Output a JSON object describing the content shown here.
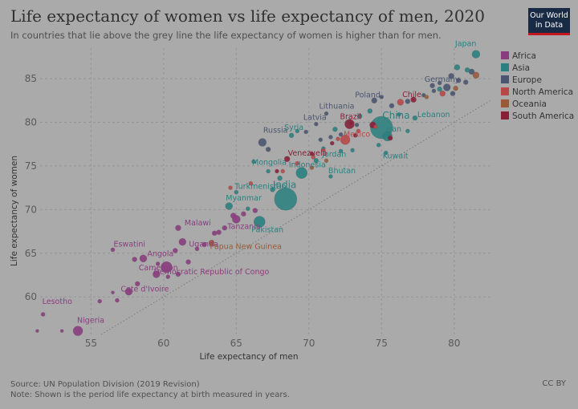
{
  "header": {
    "title": "Life expectancy of women vs life expectancy of men, 2020",
    "subtitle": "In countries that lie above the grey line the life expectancy of women is higher than for men.",
    "logo_line1": "Our World",
    "logo_line2": "in Data"
  },
  "footer": {
    "source": "Source: UN Population Division (2019 Revision)",
    "note": "Note: Shown is the period life expectancy at birth measured in years.",
    "license": "CC BY"
  },
  "chart_data": {
    "type": "scatter",
    "title": "Life expectancy of women vs life expectancy of men, 2020",
    "xlabel": "Life expectancy of men",
    "ylabel": "Life expectancy of women",
    "xlim": [
      51.5,
      82.5
    ],
    "ylim": [
      55.7,
      88.5
    ],
    "xticks": [
      55,
      60,
      65,
      70,
      75,
      80
    ],
    "yticks": [
      60,
      65,
      70,
      75,
      80,
      85
    ],
    "grid": true,
    "reference_line": "y = x",
    "legend_position": "right",
    "colors": {
      "Africa": "#8a3d7e",
      "Asia": "#2a8080",
      "Europe": "#4a5570",
      "North America": "#b84848",
      "Oceania": "#9a5a3a",
      "South America": "#882038"
    },
    "legend": [
      "Africa",
      "Asia",
      "Europe",
      "North America",
      "Oceania",
      "South America"
    ],
    "points": [
      {
        "label": "Japan",
        "x": 81.5,
        "y": 87.8,
        "region": "Asia",
        "size": 5
      },
      {
        "label": "Germany",
        "x": 79.5,
        "y": 84.0,
        "region": "Europe",
        "size": 4.5
      },
      {
        "label": "Chile",
        "x": 77.2,
        "y": 82.6,
        "region": "South America",
        "size": 3.5
      },
      {
        "label": "Lebanon",
        "x": 77.3,
        "y": 80.5,
        "region": "Asia",
        "size": 3
      },
      {
        "label": "Poland",
        "x": 74.5,
        "y": 82.5,
        "region": "Europe",
        "size": 3.5
      },
      {
        "label": "Lithuania",
        "x": 71.2,
        "y": 81.0,
        "region": "Europe",
        "size": 2.5
      },
      {
        "label": "China",
        "x": 75.0,
        "y": 79.4,
        "region": "Asia",
        "size": 14
      },
      {
        "label": "Brazil",
        "x": 72.8,
        "y": 79.8,
        "region": "South America",
        "size": 6
      },
      {
        "label": "Latvia",
        "x": 70.5,
        "y": 79.8,
        "region": "Europe",
        "size": 2.5
      },
      {
        "label": "Iran",
        "x": 75.4,
        "y": 78.4,
        "region": "Asia",
        "size": 6
      },
      {
        "label": "Mexico",
        "x": 72.5,
        "y": 78.0,
        "region": "North America",
        "size": 6
      },
      {
        "label": "Russia",
        "x": 66.8,
        "y": 77.7,
        "region": "Europe",
        "size": 5
      },
      {
        "label": "Syria",
        "x": 68.8,
        "y": 78.5,
        "region": "Asia",
        "size": 3
      },
      {
        "label": "Jordan",
        "x": 73.0,
        "y": 76.8,
        "region": "Asia",
        "size": 2.5
      },
      {
        "label": "Kuwait",
        "x": 75.3,
        "y": 76.5,
        "region": "Asia",
        "size": 2.5
      },
      {
        "label": "Venezuela",
        "x": 68.5,
        "y": 75.8,
        "region": "South America",
        "size": 3.5
      },
      {
        "label": "Mongolia",
        "x": 66.2,
        "y": 75.5,
        "region": "Asia",
        "size": 2.5
      },
      {
        "label": "Indonesia",
        "x": 69.5,
        "y": 74.2,
        "region": "Asia",
        "size": 7
      },
      {
        "label": "Bhutan",
        "x": 71.5,
        "y": 73.8,
        "region": "Asia",
        "size": 2.5
      },
      {
        "label": "India",
        "x": 68.4,
        "y": 71.2,
        "region": "Asia",
        "size": 14
      },
      {
        "label": "Turkmenistan",
        "x": 65.0,
        "y": 72.0,
        "region": "Asia",
        "size": 2.5
      },
      {
        "label": "Myanmar",
        "x": 64.5,
        "y": 70.4,
        "region": "Asia",
        "size": 4.5
      },
      {
        "label": "Pakistan",
        "x": 66.6,
        "y": 68.6,
        "region": "Asia",
        "size": 7
      },
      {
        "label": "Malawi",
        "x": 61.0,
        "y": 67.9,
        "region": "Africa",
        "size": 3.5
      },
      {
        "label": "Tanzania",
        "x": 65.0,
        "y": 68.9,
        "region": "Africa",
        "size": 5
      },
      {
        "label": "Uganda",
        "x": 61.3,
        "y": 66.3,
        "region": "Africa",
        "size": 4.5
      },
      {
        "label": "Papua New Guinea",
        "x": 63.3,
        "y": 66.2,
        "region": "Oceania",
        "size": 3.5
      },
      {
        "label": "Eswatini",
        "x": 56.5,
        "y": 65.4,
        "region": "Africa",
        "size": 2.5
      },
      {
        "label": "Angola",
        "x": 58.6,
        "y": 64.4,
        "region": "Africa",
        "size": 4.5
      },
      {
        "label": "Democratic Republic of Congo",
        "x": 60.2,
        "y": 63.4,
        "region": "Africa",
        "size": 7
      },
      {
        "label": "Cameroon",
        "x": 59.5,
        "y": 62.6,
        "region": "Africa",
        "size": 4.5
      },
      {
        "label": "Cote d'Ivoire",
        "x": 57.6,
        "y": 60.6,
        "region": "Africa",
        "size": 4.5
      },
      {
        "label": "Lesotho",
        "x": 51.7,
        "y": 58.0,
        "region": "Africa",
        "size": 2.5
      },
      {
        "label": "Nigeria",
        "x": 54.1,
        "y": 56.1,
        "region": "Africa",
        "size": 6
      },
      {
        "label": "",
        "x": 51.3,
        "y": 56.1,
        "region": "Africa",
        "size": 2
      },
      {
        "label": "",
        "x": 53.0,
        "y": 56.1,
        "region": "Africa",
        "size": 2
      },
      {
        "label": "",
        "x": 55.6,
        "y": 59.5,
        "region": "Africa",
        "size": 2.5
      },
      {
        "label": "",
        "x": 56.5,
        "y": 60.5,
        "region": "Africa",
        "size": 2
      },
      {
        "label": "",
        "x": 56.8,
        "y": 59.6,
        "region": "Africa",
        "size": 2.5
      },
      {
        "label": "",
        "x": 58.2,
        "y": 61.5,
        "region": "Africa",
        "size": 3
      },
      {
        "label": "",
        "x": 58.0,
        "y": 64.3,
        "region": "Africa",
        "size": 3
      },
      {
        "label": "",
        "x": 59.6,
        "y": 63.8,
        "region": "Africa",
        "size": 2.5
      },
      {
        "label": "",
        "x": 60.3,
        "y": 62.3,
        "region": "Africa",
        "size": 2.5
      },
      {
        "label": "",
        "x": 61.0,
        "y": 62.6,
        "region": "Africa",
        "size": 3
      },
      {
        "label": "",
        "x": 61.7,
        "y": 64.0,
        "region": "Africa",
        "size": 3
      },
      {
        "label": "",
        "x": 62.8,
        "y": 66.0,
        "region": "Africa",
        "size": 3
      },
      {
        "label": "",
        "x": 63.5,
        "y": 67.3,
        "region": "Africa",
        "size": 3
      },
      {
        "label": "",
        "x": 64.2,
        "y": 67.9,
        "region": "Africa",
        "size": 3
      },
      {
        "label": "",
        "x": 63.8,
        "y": 67.4,
        "region": "Africa",
        "size": 3
      },
      {
        "label": "",
        "x": 60.8,
        "y": 65.3,
        "region": "Africa",
        "size": 3
      },
      {
        "label": "",
        "x": 64.8,
        "y": 69.3,
        "region": "Africa",
        "size": 3.5
      },
      {
        "label": "",
        "x": 65.5,
        "y": 69.5,
        "region": "Africa",
        "size": 3
      },
      {
        "label": "",
        "x": 66.3,
        "y": 69.9,
        "region": "Africa",
        "size": 3
      },
      {
        "label": "",
        "x": 62.3,
        "y": 65.5,
        "region": "Africa",
        "size": 2.5
      },
      {
        "label": "",
        "x": 67.5,
        "y": 72.3,
        "region": "Asia",
        "size": 3
      },
      {
        "label": "",
        "x": 68.0,
        "y": 73.6,
        "region": "Asia",
        "size": 3
      },
      {
        "label": "",
        "x": 67.2,
        "y": 74.4,
        "region": "Asia",
        "size": 2.5
      },
      {
        "label": "",
        "x": 70.5,
        "y": 75.6,
        "region": "Asia",
        "size": 3
      },
      {
        "label": "",
        "x": 71.0,
        "y": 77.0,
        "region": "Asia",
        "size": 2.5
      },
      {
        "label": "",
        "x": 71.8,
        "y": 79.2,
        "region": "Asia",
        "size": 3
      },
      {
        "label": "",
        "x": 73.5,
        "y": 80.7,
        "region": "Asia",
        "size": 3
      },
      {
        "label": "",
        "x": 74.2,
        "y": 81.3,
        "region": "Asia",
        "size": 3
      },
      {
        "label": "",
        "x": 76.8,
        "y": 79.0,
        "region": "Asia",
        "size": 2.5
      },
      {
        "label": "",
        "x": 76.2,
        "y": 80.9,
        "region": "Asia",
        "size": 2.5
      },
      {
        "label": "",
        "x": 80.2,
        "y": 86.3,
        "region": "Asia",
        "size": 3.5
      },
      {
        "label": "",
        "x": 80.9,
        "y": 86.0,
        "region": "Asia",
        "size": 3
      },
      {
        "label": "",
        "x": 79.0,
        "y": 83.8,
        "region": "Asia",
        "size": 3
      },
      {
        "label": "",
        "x": 69.2,
        "y": 79.0,
        "region": "Asia",
        "size": 2.5
      },
      {
        "label": "",
        "x": 72.2,
        "y": 76.7,
        "region": "Asia",
        "size": 2.5
      },
      {
        "label": "",
        "x": 74.8,
        "y": 77.4,
        "region": "Asia",
        "size": 2.5
      },
      {
        "label": "",
        "x": 65.8,
        "y": 70.1,
        "region": "Asia",
        "size": 2.5
      },
      {
        "label": "",
        "x": 78.5,
        "y": 84.2,
        "region": "Europe",
        "size": 3
      },
      {
        "label": "",
        "x": 79.8,
        "y": 85.3,
        "region": "Europe",
        "size": 3.5
      },
      {
        "label": "",
        "x": 80.3,
        "y": 84.8,
        "region": "Europe",
        "size": 3
      },
      {
        "label": "",
        "x": 80.8,
        "y": 84.6,
        "region": "Europe",
        "size": 3
      },
      {
        "label": "",
        "x": 81.2,
        "y": 85.8,
        "region": "Europe",
        "size": 3.5
      },
      {
        "label": "",
        "x": 79.9,
        "y": 83.3,
        "region": "Europe",
        "size": 3
      },
      {
        "label": "",
        "x": 79.0,
        "y": 84.5,
        "region": "Europe",
        "size": 2.5
      },
      {
        "label": "",
        "x": 78.6,
        "y": 83.6,
        "region": "Europe",
        "size": 2.5
      },
      {
        "label": "",
        "x": 77.9,
        "y": 83.1,
        "region": "Europe",
        "size": 2.5
      },
      {
        "label": "",
        "x": 76.8,
        "y": 82.4,
        "region": "Europe",
        "size": 3
      },
      {
        "label": "",
        "x": 75.7,
        "y": 81.9,
        "region": "Europe",
        "size": 3
      },
      {
        "label": "",
        "x": 75.0,
        "y": 82.9,
        "region": "Europe",
        "size": 2.5
      },
      {
        "label": "",
        "x": 73.3,
        "y": 79.7,
        "region": "Europe",
        "size": 2.5
      },
      {
        "label": "",
        "x": 72.2,
        "y": 78.6,
        "region": "Europe",
        "size": 2.5
      },
      {
        "label": "",
        "x": 71.5,
        "y": 78.3,
        "region": "Europe",
        "size": 2.5
      },
      {
        "label": "",
        "x": 70.8,
        "y": 78.0,
        "region": "Europe",
        "size": 2.5
      },
      {
        "label": "",
        "x": 69.8,
        "y": 78.9,
        "region": "Europe",
        "size": 2.5
      },
      {
        "label": "",
        "x": 67.2,
        "y": 76.9,
        "region": "Europe",
        "size": 3
      },
      {
        "label": "",
        "x": 76.3,
        "y": 82.3,
        "region": "North America",
        "size": 4
      },
      {
        "label": "",
        "x": 74.6,
        "y": 79.5,
        "region": "North America",
        "size": 2.5
      },
      {
        "label": "",
        "x": 73.4,
        "y": 79.0,
        "region": "North America",
        "size": 2.5
      },
      {
        "label": "",
        "x": 72.0,
        "y": 78.1,
        "region": "North America",
        "size": 2.5
      },
      {
        "label": "",
        "x": 71.0,
        "y": 76.8,
        "region": "North America",
        "size": 2.5
      },
      {
        "label": "",
        "x": 70.3,
        "y": 76.0,
        "region": "North America",
        "size": 2.5
      },
      {
        "label": "",
        "x": 69.2,
        "y": 75.3,
        "region": "North America",
        "size": 2.5
      },
      {
        "label": "",
        "x": 68.2,
        "y": 74.4,
        "region": "North America",
        "size": 2.5
      },
      {
        "label": "",
        "x": 66.0,
        "y": 73.0,
        "region": "North America",
        "size": 2.5
      },
      {
        "label": "",
        "x": 64.6,
        "y": 72.5,
        "region": "North America",
        "size": 2.5
      },
      {
        "label": "",
        "x": 79.2,
        "y": 83.3,
        "region": "North America",
        "size": 3.5
      },
      {
        "label": "",
        "x": 78.1,
        "y": 82.9,
        "region": "Oceania",
        "size": 2.5
      },
      {
        "label": "",
        "x": 81.5,
        "y": 85.4,
        "region": "Oceania",
        "size": 4
      },
      {
        "label": "",
        "x": 80.1,
        "y": 83.9,
        "region": "Oceania",
        "size": 3
      },
      {
        "label": "",
        "x": 71.2,
        "y": 75.6,
        "region": "Oceania",
        "size": 2.5
      },
      {
        "label": "",
        "x": 70.2,
        "y": 74.8,
        "region": "Oceania",
        "size": 2.5
      },
      {
        "label": "",
        "x": 74.4,
        "y": 79.7,
        "region": "South America",
        "size": 4
      },
      {
        "label": "",
        "x": 75.6,
        "y": 78.2,
        "region": "South America",
        "size": 3
      },
      {
        "label": "",
        "x": 73.2,
        "y": 78.5,
        "region": "South America",
        "size": 2.5
      },
      {
        "label": "",
        "x": 72.9,
        "y": 79.9,
        "region": "South America",
        "size": 2.5
      },
      {
        "label": "",
        "x": 71.6,
        "y": 77.6,
        "region": "South America",
        "size": 2.5
      },
      {
        "label": "",
        "x": 70.2,
        "y": 76.4,
        "region": "South America",
        "size": 2.5
      },
      {
        "label": "",
        "x": 67.8,
        "y": 74.4,
        "region": "South America",
        "size": 2.5
      }
    ]
  }
}
